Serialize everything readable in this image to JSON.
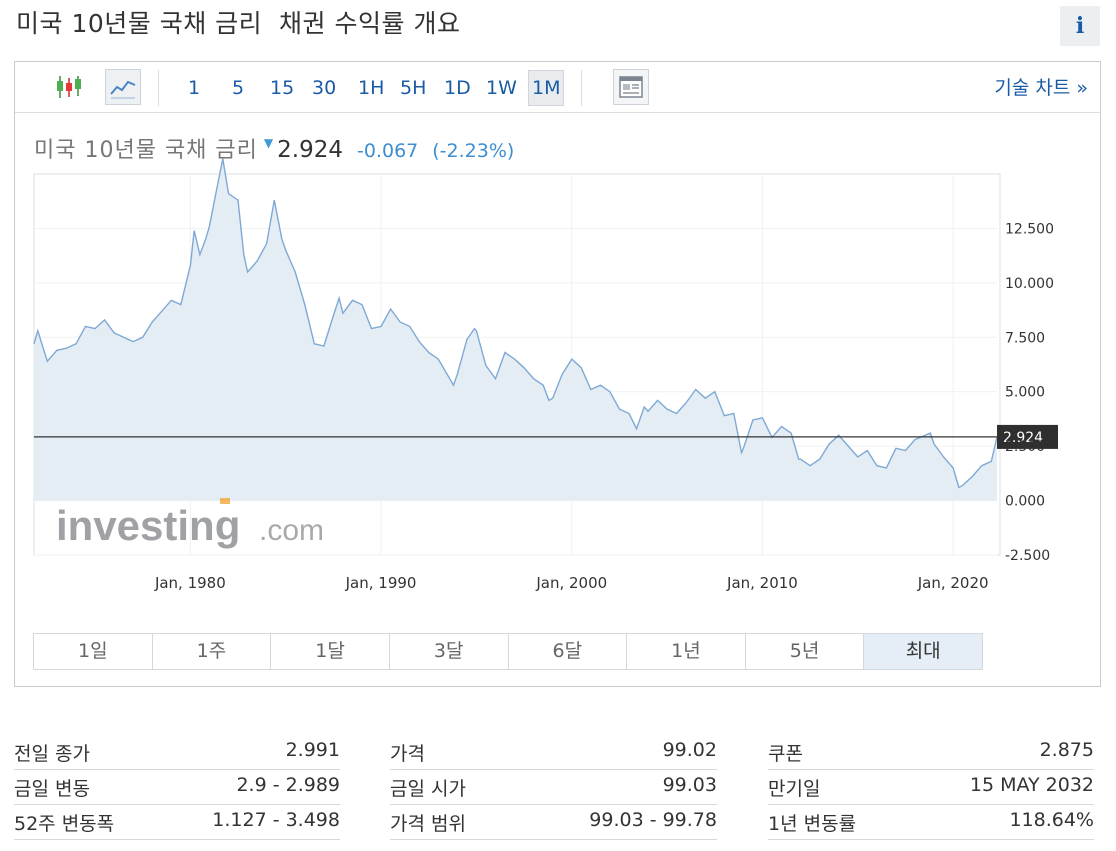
{
  "page": {
    "title": "미국 10년물 국채 금리  채권 수익률 개요",
    "info_icon": "i"
  },
  "toolbar": {
    "icons": {
      "candlestick": "candlestick-icon",
      "line": "line-chart-icon",
      "news": "news-icon"
    },
    "intervals": [
      "1",
      "5",
      "15",
      "30",
      "1H",
      "5H",
      "1D",
      "1W",
      "1M"
    ],
    "active_interval": "1M",
    "technical_chart_label": "기술 차트 »"
  },
  "quote": {
    "name": "미국 10년물 국채 금리",
    "arrow": "▼",
    "price": "2.924",
    "change": "-0.067",
    "change_pct": "(-2.23%)",
    "down_color": "#3e8ed0"
  },
  "watermark": {
    "brand": "investing",
    "suffix": ".com"
  },
  "chart_data": {
    "type": "area",
    "title": "",
    "xlabel": "",
    "ylabel": "",
    "x_ticks": [
      "Jan, 1980",
      "Jan, 1990",
      "Jan, 2000",
      "Jan, 2010",
      "Jan, 2020"
    ],
    "y_ticks": [
      "12.500",
      "10.000",
      "7.500",
      "5.000",
      "2.500",
      "0.000",
      "-2.500"
    ],
    "ylim": [
      -2.5,
      15.0
    ],
    "xlim": [
      1971.8,
      2022.3
    ],
    "grid": true,
    "current_value_label": "2.924",
    "current_value": 2.924,
    "line_color": "#7ea9d4",
    "fill_color": "#e4edf4",
    "series": [
      {
        "x": [
          1971.8,
          1972.0,
          1972.5,
          1973.0,
          1973.5,
          1974.0,
          1974.5,
          1975.0,
          1975.5,
          1976.0,
          1976.5,
          1977.0,
          1977.5,
          1978.0,
          1978.5,
          1979.0,
          1979.5,
          1980.0,
          1980.2,
          1980.5,
          1980.8,
          1981.0,
          1981.4,
          1981.7,
          1982.0,
          1982.5,
          1982.8,
          1983.0,
          1983.5,
          1984.0,
          1984.4,
          1984.8,
          1985.0,
          1985.5,
          1986.0,
          1986.5,
          1987.0,
          1987.5,
          1987.8,
          1988.0,
          1988.5,
          1989.0,
          1989.5,
          1990.0,
          1990.5,
          1991.0,
          1991.5,
          1992.0,
          1992.5,
          1993.0,
          1993.8,
          1994.0,
          1994.5,
          1994.9,
          1995.0,
          1995.5,
          1996.0,
          1996.5,
          1997.0,
          1997.5,
          1998.0,
          1998.5,
          1998.8,
          1999.0,
          1999.5,
          2000.0,
          2000.5,
          2001.0,
          2001.5,
          2002.0,
          2002.5,
          2003.0,
          2003.4,
          2003.8,
          2004.0,
          2004.5,
          2005.0,
          2005.5,
          2006.0,
          2006.5,
          2007.0,
          2007.5,
          2008.0,
          2008.5,
          2008.9,
          2009.0,
          2009.5,
          2010.0,
          2010.5,
          2011.0,
          2011.5,
          2011.9,
          2012.0,
          2012.5,
          2013.0,
          2013.5,
          2014.0,
          2014.5,
          2015.0,
          2015.5,
          2016.0,
          2016.5,
          2017.0,
          2017.5,
          2018.0,
          2018.8,
          2019.0,
          2019.5,
          2020.0,
          2020.3,
          2020.5,
          2021.0,
          2021.5,
          2022.0,
          2022.3
        ],
        "y": [
          7.2,
          7.8,
          6.4,
          6.9,
          7.0,
          7.2,
          8.0,
          7.9,
          8.3,
          7.7,
          7.5,
          7.3,
          7.5,
          8.2,
          8.7,
          9.2,
          9.0,
          10.8,
          12.4,
          11.3,
          12.0,
          12.6,
          14.4,
          15.7,
          14.1,
          13.8,
          11.3,
          10.5,
          11.0,
          11.8,
          13.8,
          12.0,
          11.5,
          10.5,
          9.0,
          7.2,
          7.1,
          8.5,
          9.3,
          8.6,
          9.2,
          9.0,
          7.9,
          8.0,
          8.8,
          8.2,
          8.0,
          7.3,
          6.8,
          6.5,
          5.3,
          5.8,
          7.4,
          7.9,
          7.8,
          6.2,
          5.6,
          6.8,
          6.5,
          6.1,
          5.6,
          5.3,
          4.6,
          4.7,
          5.8,
          6.5,
          6.1,
          5.1,
          5.3,
          5.0,
          4.2,
          4.0,
          3.3,
          4.3,
          4.1,
          4.6,
          4.2,
          4.0,
          4.5,
          5.1,
          4.7,
          5.0,
          3.9,
          4.0,
          2.2,
          2.4,
          3.7,
          3.8,
          2.9,
          3.4,
          3.1,
          1.9,
          1.9,
          1.6,
          1.9,
          2.6,
          3.0,
          2.5,
          2.0,
          2.3,
          1.6,
          1.5,
          2.4,
          2.3,
          2.8,
          3.1,
          2.6,
          2.0,
          1.5,
          0.6,
          0.7,
          1.1,
          1.6,
          1.8,
          2.924
        ]
      }
    ]
  },
  "range_buttons": [
    "1일",
    "1주",
    "1달",
    "3달",
    "6달",
    "1년",
    "5년",
    "최대"
  ],
  "active_range": "최대",
  "stats": {
    "col1": [
      {
        "label": "전일 종가",
        "value": "2.991"
      },
      {
        "label": "금일 변동",
        "value": "2.9 - 2.989"
      },
      {
        "label": "52주 변동폭",
        "value": "1.127 - 3.498"
      }
    ],
    "col2": [
      {
        "label": "가격",
        "value": "99.02"
      },
      {
        "label": "금일 시가",
        "value": "99.03"
      },
      {
        "label": "가격 범위",
        "value": "99.03 - 99.78"
      }
    ],
    "col3": [
      {
        "label": "쿠폰",
        "value": "2.875"
      },
      {
        "label": "만기일",
        "value": "15 MAY 2032"
      },
      {
        "label": "1년 변동률",
        "value": "118.64%"
      }
    ]
  }
}
